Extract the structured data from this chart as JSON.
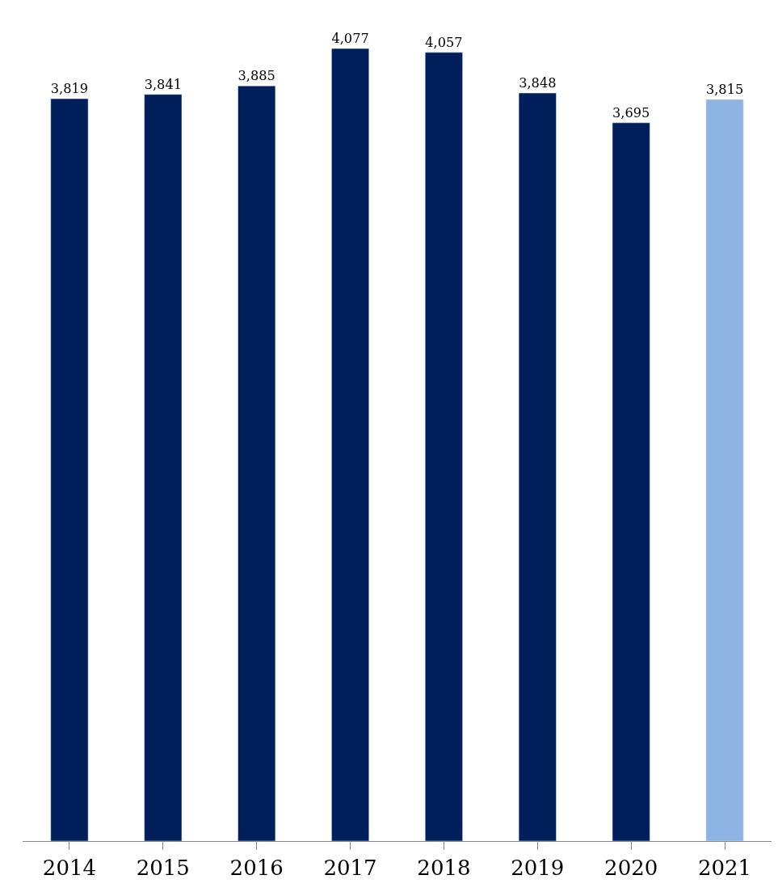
{
  "chart_data": {
    "type": "bar",
    "categories": [
      "2014",
      "2015",
      "2016",
      "2017",
      "2018",
      "2019",
      "2020",
      "2021"
    ],
    "values": [
      3819,
      3841,
      3885,
      4077,
      4057,
      3848,
      3695,
      3815
    ],
    "value_labels": [
      "3,819",
      "3,841",
      "3,885",
      "4,077",
      "4,057",
      "3,848",
      "3,695",
      "3,815"
    ],
    "colors": [
      "#001f5b",
      "#001f5b",
      "#001f5b",
      "#001f5b",
      "#001f5b",
      "#001f5b",
      "#001f5b",
      "#8db4e2"
    ]
  }
}
